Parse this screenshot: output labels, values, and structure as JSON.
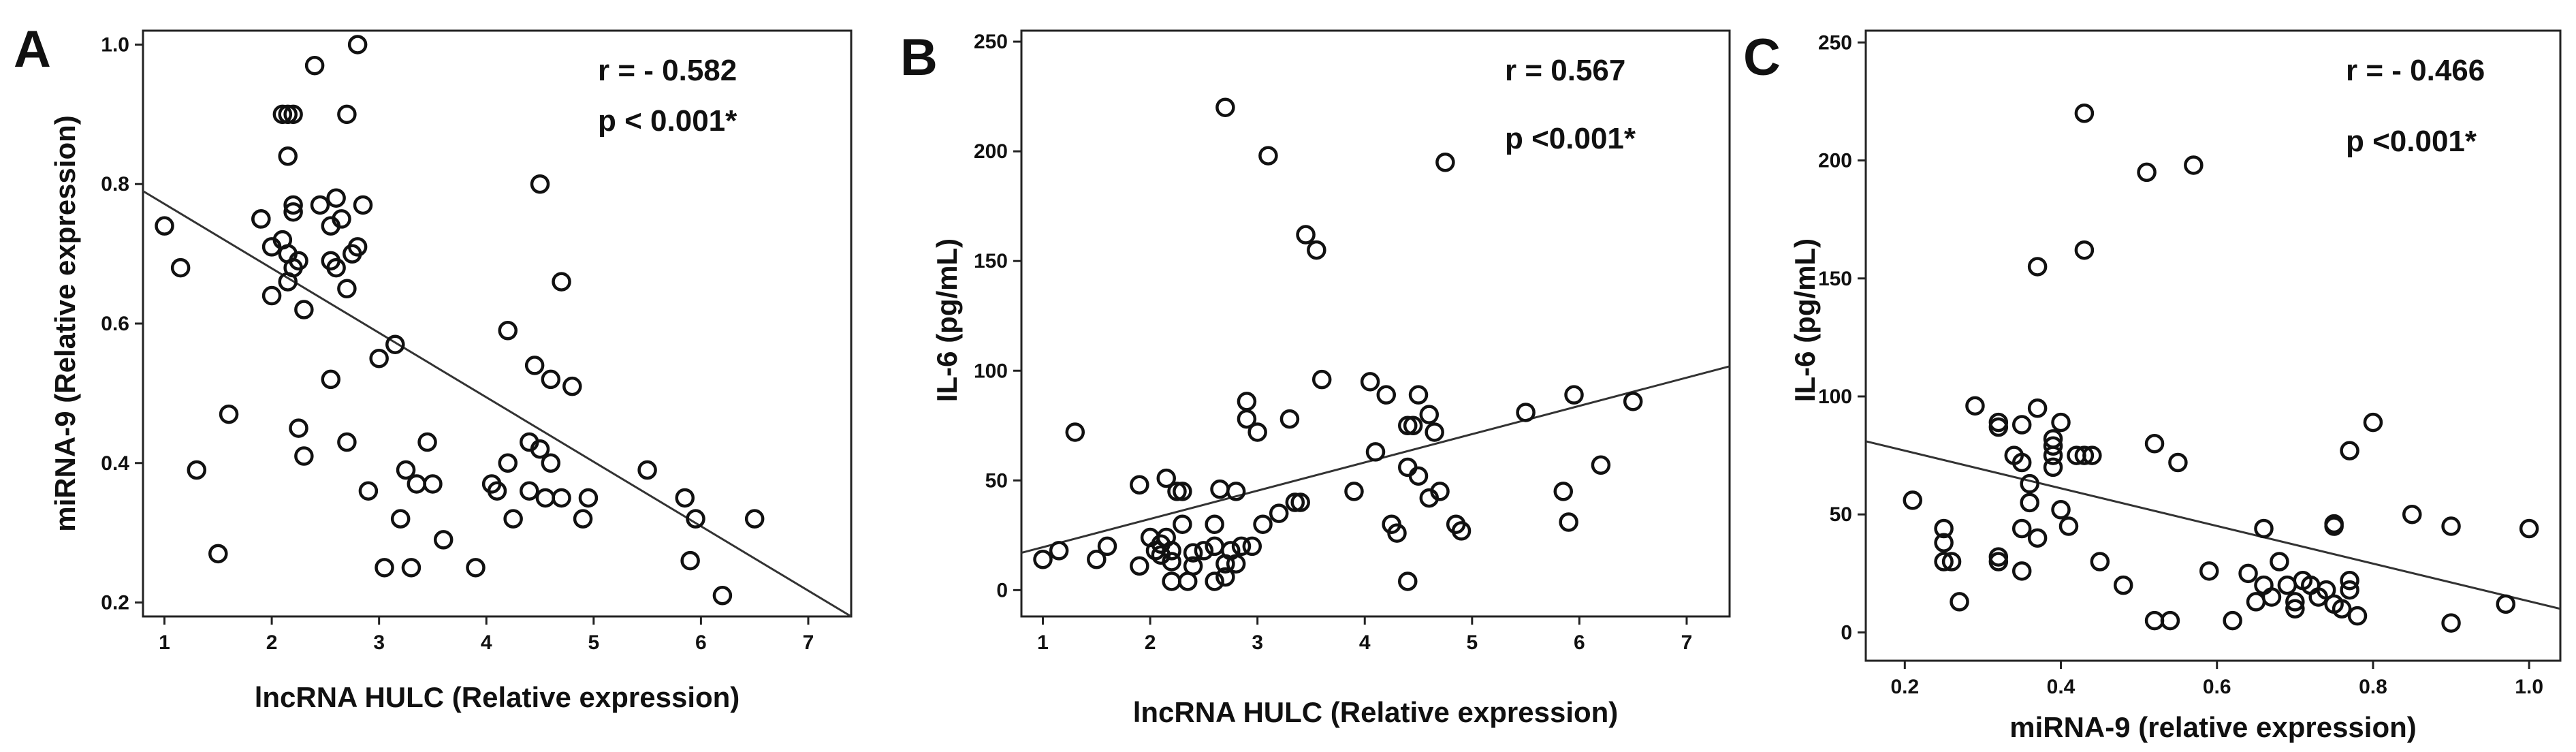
{
  "chart_data": [
    {
      "type": "scatter",
      "panel": "A",
      "xlabel": "lncRNA HULC (Relative expression)",
      "ylabel": "miRNA-9 (Relative expression)",
      "xlim": [
        0.8,
        7.4
      ],
      "ylim": [
        0.18,
        1.02
      ],
      "xticks": [
        1,
        2,
        3,
        4,
        5,
        6,
        7
      ],
      "yticks": [
        0.2,
        0.4,
        0.6,
        0.8,
        1.0
      ],
      "ytick_labels": [
        "0.2",
        "0.4",
        "0.6",
        "0.8",
        "1.0"
      ],
      "annotations": [
        "r = - 0.582",
        "p < 0.001*"
      ],
      "fit_line": [
        [
          0.8,
          0.79
        ],
        [
          7.4,
          0.18
        ]
      ],
      "series": [
        {
          "points": [
            [
              1.0,
              0.74
            ],
            [
              1.15,
              0.68
            ],
            [
              1.3,
              0.39
            ],
            [
              1.5,
              0.27
            ],
            [
              1.6,
              0.47
            ],
            [
              1.9,
              0.75
            ],
            [
              1.9,
              0.75
            ],
            [
              2.0,
              0.71
            ],
            [
              2.0,
              0.64
            ],
            [
              2.1,
              0.72
            ],
            [
              2.1,
              0.9
            ],
            [
              2.15,
              0.9
            ],
            [
              2.2,
              0.9
            ],
            [
              2.15,
              0.84
            ],
            [
              2.2,
              0.77
            ],
            [
              2.2,
              0.76
            ],
            [
              2.15,
              0.7
            ],
            [
              2.2,
              0.68
            ],
            [
              2.15,
              0.66
            ],
            [
              2.25,
              0.69
            ],
            [
              2.25,
              0.45
            ],
            [
              2.3,
              0.41
            ],
            [
              2.3,
              0.62
            ],
            [
              2.4,
              0.97
            ],
            [
              2.45,
              0.77
            ],
            [
              2.55,
              0.74
            ],
            [
              2.55,
              0.69
            ],
            [
              2.6,
              0.68
            ],
            [
              2.6,
              0.78
            ],
            [
              2.65,
              0.75
            ],
            [
              2.55,
              0.52
            ],
            [
              2.7,
              0.9
            ],
            [
              2.75,
              0.7
            ],
            [
              2.7,
              0.65
            ],
            [
              2.8,
              0.71
            ],
            [
              2.7,
              0.43
            ],
            [
              2.8,
              1.0
            ],
            [
              2.85,
              0.77
            ],
            [
              2.9,
              0.36
            ],
            [
              3.0,
              0.55
            ],
            [
              3.05,
              0.25
            ],
            [
              3.15,
              0.57
            ],
            [
              3.2,
              0.32
            ],
            [
              3.25,
              0.39
            ],
            [
              3.3,
              0.25
            ],
            [
              3.35,
              0.37
            ],
            [
              3.45,
              0.43
            ],
            [
              3.5,
              0.37
            ],
            [
              3.6,
              0.29
            ],
            [
              3.9,
              0.25
            ],
            [
              4.05,
              0.37
            ],
            [
              4.1,
              0.36
            ],
            [
              4.2,
              0.4
            ],
            [
              4.25,
              0.32
            ],
            [
              4.2,
              0.59
            ],
            [
              4.4,
              0.43
            ],
            [
              4.4,
              0.36
            ],
            [
              4.45,
              0.54
            ],
            [
              4.5,
              0.8
            ],
            [
              4.5,
              0.42
            ],
            [
              4.55,
              0.35
            ],
            [
              4.6,
              0.4
            ],
            [
              4.6,
              0.52
            ],
            [
              4.7,
              0.66
            ],
            [
              4.7,
              0.35
            ],
            [
              4.8,
              0.51
            ],
            [
              4.9,
              0.32
            ],
            [
              4.95,
              0.35
            ],
            [
              5.5,
              0.39
            ],
            [
              5.85,
              0.35
            ],
            [
              5.9,
              0.26
            ],
            [
              5.95,
              0.32
            ],
            [
              6.2,
              0.21
            ],
            [
              6.5,
              0.32
            ]
          ]
        }
      ]
    },
    {
      "type": "scatter",
      "panel": "B",
      "xlabel": "lncRNA HULC (Relative expression)",
      "ylabel": "IL-6 (pg/mL)",
      "xlim": [
        0.8,
        7.4
      ],
      "ylim": [
        -12,
        255
      ],
      "xticks": [
        1,
        2,
        3,
        4,
        5,
        6,
        7
      ],
      "yticks": [
        0,
        50,
        100,
        150,
        200,
        250
      ],
      "ytick_labels": [
        "0",
        "50",
        "100",
        "150",
        "200",
        "250"
      ],
      "annotations": [
        "r = 0.567",
        "p <0.001*"
      ],
      "fit_line": [
        [
          0.8,
          17
        ],
        [
          7.4,
          102
        ]
      ],
      "series": [
        {
          "points": [
            [
              1.0,
              14
            ],
            [
              1.15,
              18
            ],
            [
              1.3,
              72
            ],
            [
              1.5,
              14
            ],
            [
              1.6,
              20
            ],
            [
              1.9,
              48
            ],
            [
              1.9,
              11
            ],
            [
              2.0,
              24
            ],
            [
              2.05,
              18
            ],
            [
              2.1,
              16
            ],
            [
              2.1,
              21
            ],
            [
              2.15,
              51
            ],
            [
              2.15,
              24
            ],
            [
              2.2,
              18
            ],
            [
              2.2,
              13
            ],
            [
              2.2,
              4
            ],
            [
              2.25,
              45
            ],
            [
              2.3,
              45
            ],
            [
              2.3,
              30
            ],
            [
              2.35,
              4
            ],
            [
              2.4,
              17
            ],
            [
              2.4,
              11
            ],
            [
              2.5,
              18
            ],
            [
              2.6,
              20
            ],
            [
              2.6,
              30
            ],
            [
              2.6,
              4
            ],
            [
              2.65,
              46
            ],
            [
              2.7,
              6
            ],
            [
              2.7,
              12
            ],
            [
              2.75,
              18
            ],
            [
              2.7,
              220
            ],
            [
              2.8,
              45
            ],
            [
              2.8,
              12
            ],
            [
              2.85,
              20
            ],
            [
              2.9,
              78
            ],
            [
              2.9,
              86
            ],
            [
              2.95,
              20
            ],
            [
              3.0,
              72
            ],
            [
              3.05,
              30
            ],
            [
              3.1,
              198
            ],
            [
              3.2,
              35
            ],
            [
              3.3,
              78
            ],
            [
              3.35,
              40
            ],
            [
              3.4,
              40
            ],
            [
              3.45,
              162
            ],
            [
              3.55,
              155
            ],
            [
              3.6,
              96
            ],
            [
              3.9,
              45
            ],
            [
              4.05,
              95
            ],
            [
              4.1,
              63
            ],
            [
              4.2,
              89
            ],
            [
              4.25,
              30
            ],
            [
              4.3,
              26
            ],
            [
              4.4,
              75
            ],
            [
              4.4,
              56
            ],
            [
              4.45,
              75
            ],
            [
              4.5,
              89
            ],
            [
              4.5,
              52
            ],
            [
              4.6,
              80
            ],
            [
              4.6,
              42
            ],
            [
              4.65,
              72
            ],
            [
              4.7,
              45
            ],
            [
              4.75,
              195
            ],
            [
              4.85,
              30
            ],
            [
              4.9,
              27
            ],
            [
              5.5,
              81
            ],
            [
              5.85,
              45
            ],
            [
              5.9,
              31
            ],
            [
              5.95,
              89
            ],
            [
              6.2,
              57
            ],
            [
              6.5,
              86
            ],
            [
              4.4,
              4
            ]
          ]
        }
      ]
    },
    {
      "type": "scatter",
      "panel": "C",
      "xlabel": "miRNA-9 (relative expression)",
      "ylabel": "IL-6 (pg/mL)",
      "xlim": [
        0.15,
        1.04
      ],
      "ylim": [
        -12,
        255
      ],
      "xticks": [
        0.2,
        0.4,
        0.6,
        0.8,
        1.0
      ],
      "xtick_labels": [
        "0.2",
        "0.4",
        "0.6",
        "0.8",
        "1.0"
      ],
      "yticks": [
        0,
        50,
        100,
        150,
        200,
        250
      ],
      "ytick_labels": [
        "0",
        "50",
        "100",
        "150",
        "200",
        "250"
      ],
      "annotations": [
        "r = - 0.466",
        "p <0.001*"
      ],
      "fit_line": [
        [
          0.15,
          81
        ],
        [
          1.04,
          10
        ]
      ],
      "series": [
        {
          "points": [
            [
              0.21,
              56
            ],
            [
              0.25,
              44
            ],
            [
              0.25,
              38
            ],
            [
              0.25,
              30
            ],
            [
              0.26,
              30
            ],
            [
              0.27,
              13
            ],
            [
              0.29,
              96
            ],
            [
              0.32,
              89
            ],
            [
              0.32,
              87
            ],
            [
              0.32,
              30
            ],
            [
              0.32,
              32
            ],
            [
              0.34,
              75
            ],
            [
              0.35,
              72
            ],
            [
              0.35,
              88
            ],
            [
              0.35,
              44
            ],
            [
              0.35,
              26
            ],
            [
              0.36,
              55
            ],
            [
              0.36,
              63
            ],
            [
              0.37,
              95
            ],
            [
              0.37,
              155
            ],
            [
              0.37,
              40
            ],
            [
              0.39,
              70
            ],
            [
              0.39,
              75
            ],
            [
              0.39,
              79
            ],
            [
              0.39,
              82
            ],
            [
              0.4,
              89
            ],
            [
              0.4,
              52
            ],
            [
              0.41,
              45
            ],
            [
              0.42,
              75
            ],
            [
              0.43,
              75
            ],
            [
              0.43,
              162
            ],
            [
              0.43,
              220
            ],
            [
              0.44,
              75
            ],
            [
              0.45,
              30
            ],
            [
              0.48,
              20
            ],
            [
              0.51,
              195
            ],
            [
              0.52,
              80
            ],
            [
              0.52,
              5
            ],
            [
              0.54,
              5
            ],
            [
              0.55,
              72
            ],
            [
              0.57,
              198
            ],
            [
              0.59,
              26
            ],
            [
              0.62,
              5
            ],
            [
              0.64,
              25
            ],
            [
              0.65,
              13
            ],
            [
              0.66,
              44
            ],
            [
              0.66,
              20
            ],
            [
              0.67,
              15
            ],
            [
              0.68,
              30
            ],
            [
              0.69,
              20
            ],
            [
              0.7,
              13
            ],
            [
              0.7,
              10
            ],
            [
              0.71,
              22
            ],
            [
              0.72,
              20
            ],
            [
              0.73,
              15
            ],
            [
              0.74,
              18
            ],
            [
              0.75,
              46
            ],
            [
              0.75,
              45
            ],
            [
              0.75,
              12
            ],
            [
              0.76,
              10
            ],
            [
              0.77,
              22
            ],
            [
              0.77,
              18
            ],
            [
              0.77,
              77
            ],
            [
              0.78,
              7
            ],
            [
              0.8,
              89
            ],
            [
              0.85,
              50
            ],
            [
              0.9,
              45
            ],
            [
              0.9,
              4
            ],
            [
              0.97,
              12
            ],
            [
              1.0,
              44
            ]
          ]
        }
      ]
    }
  ]
}
